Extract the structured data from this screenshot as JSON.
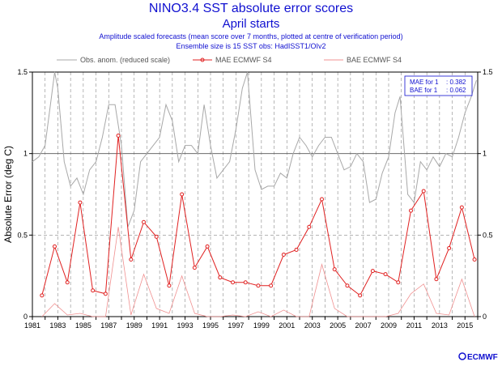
{
  "header": {
    "title": "NINO3.4 SST absolute error scores",
    "subtitle": "April starts",
    "line3": "Amplitude scaled forecasts (mean score over 7 months, plotted at centre of verification period)",
    "line4": "Ensemble size is 15          SST obs: HadISST1/OIv2"
  },
  "legend": {
    "obs": "Obs. anom. (reduced scale)",
    "mae": "MAE ECMWF S4",
    "bae": "BAE ECMWF S4"
  },
  "stats": {
    "mae_label": "MAE for 1",
    "mae_value": ": 0.382",
    "bae_label": "BAE for 1",
    "bae_value": ": 0.062"
  },
  "logo": "ECMWF",
  "colors": {
    "mae": "#e02020",
    "bae": "#f09090",
    "obs": "#a8a8a8",
    "text": "#1010d0"
  },
  "chart_data": {
    "type": "line",
    "ylabel": "Absolute Error (deg C)",
    "xlim": [
      1981,
      2016
    ],
    "ylim": [
      0,
      1.5
    ],
    "y_ticks": [
      0,
      0.5,
      1,
      1.5
    ],
    "y_tick_labels": [
      "0",
      "0.5",
      "1",
      "1.5"
    ],
    "x_tick_labels": [
      "1981",
      "1983",
      "1985",
      "1987",
      "1989",
      "1991",
      "1993",
      "1995",
      "1997",
      "1999",
      "2001",
      "2003",
      "2005",
      "2007",
      "2009",
      "2011",
      "2013",
      "2015"
    ],
    "grid": true,
    "legend_position": "top",
    "series": [
      {
        "name": "MAE ECMWF S4",
        "x": [
          1981.75,
          1982.75,
          1983.75,
          1984.75,
          1985.75,
          1986.75,
          1987.75,
          1988.75,
          1989.75,
          1990.75,
          1991.75,
          1992.75,
          1993.75,
          1994.75,
          1995.75,
          1996.75,
          1997.75,
          1998.75,
          1999.75,
          2000.75,
          2001.75,
          2002.75,
          2003.75,
          2004.75,
          2005.75,
          2006.75,
          2007.75,
          2008.75,
          2009.75,
          2010.75,
          2011.75,
          2012.75,
          2013.75,
          2014.75,
          2015.75
        ],
        "values": [
          0.13,
          0.43,
          0.21,
          0.7,
          0.16,
          0.14,
          1.11,
          0.35,
          0.58,
          0.49,
          0.19,
          0.75,
          0.3,
          0.43,
          0.24,
          0.21,
          0.21,
          0.19,
          0.19,
          0.38,
          0.41,
          0.55,
          0.72,
          0.29,
          0.19,
          0.13,
          0.28,
          0.26,
          0.21,
          0.65,
          0.77,
          0.23,
          0.42,
          0.67,
          0.35
        ]
      },
      {
        "name": "BAE ECMWF S4",
        "x": [
          1981.75,
          1982.75,
          1983.75,
          1984.75,
          1985.75,
          1986.75,
          1987.75,
          1988.75,
          1989.75,
          1990.75,
          1991.75,
          1992.75,
          1993.75,
          1994.75,
          1995.75,
          1996.75,
          1997.75,
          1998.75,
          1999.75,
          2000.75,
          2001.75,
          2002.75,
          2003.75,
          2004.75,
          2005.75,
          2006.75,
          2007.75,
          2008.75,
          2009.75,
          2010.75,
          2011.75,
          2012.75,
          2013.75,
          2014.75,
          2015.75
        ],
        "values": [
          0.0,
          0.08,
          0.01,
          0.02,
          0.0,
          0.0,
          0.55,
          0.01,
          0.26,
          0.05,
          0.02,
          0.25,
          0.02,
          0.0,
          0.0,
          0.01,
          0.0,
          0.03,
          0.0,
          0.04,
          0.0,
          0.0,
          0.32,
          0.05,
          0.0,
          0.0,
          0.0,
          0.0,
          0.02,
          0.14,
          0.2,
          0.02,
          0.01,
          0.23,
          0.0
        ]
      },
      {
        "name": "Obs. anom. (reduced scale)",
        "x": [
          1981.0,
          1981.5,
          1982.0,
          1982.5,
          1982.75,
          1983.0,
          1983.5,
          1984.0,
          1984.5,
          1985.0,
          1985.5,
          1986.0,
          1986.5,
          1987.0,
          1987.5,
          1988.0,
          1988.5,
          1989.0,
          1989.5,
          1990.0,
          1990.5,
          1991.0,
          1991.5,
          1992.0,
          1992.5,
          1993.0,
          1993.5,
          1994.0,
          1994.5,
          1995.0,
          1995.5,
          1996.0,
          1996.5,
          1997.0,
          1997.5,
          1997.9,
          1998.5,
          1999.0,
          1999.5,
          2000.0,
          2000.5,
          2001.0,
          2001.5,
          2002.0,
          2002.5,
          2003.0,
          2003.5,
          2004.0,
          2004.5,
          2005.0,
          2005.5,
          2006.0,
          2006.5,
          2007.0,
          2007.5,
          2008.0,
          2008.5,
          2009.0,
          2009.5,
          2009.9,
          2010.5,
          2011.0,
          2011.5,
          2012.0,
          2012.5,
          2013.0,
          2013.5,
          2014.0,
          2014.5,
          2015.0,
          2015.5,
          2015.9
        ],
        "values": [
          0.95,
          0.98,
          1.05,
          1.35,
          1.5,
          1.4,
          0.95,
          0.8,
          0.85,
          0.75,
          0.9,
          0.95,
          1.1,
          1.3,
          1.3,
          1.05,
          0.55,
          0.65,
          0.95,
          1.0,
          1.05,
          1.1,
          1.3,
          1.2,
          0.95,
          1.05,
          1.05,
          1.0,
          1.3,
          1.05,
          0.85,
          0.9,
          0.95,
          1.15,
          1.4,
          1.5,
          0.9,
          0.78,
          0.8,
          0.8,
          0.88,
          0.85,
          1.0,
          1.1,
          1.05,
          0.98,
          1.05,
          1.1,
          1.1,
          1.0,
          0.9,
          0.92,
          1.0,
          0.95,
          0.7,
          0.72,
          0.88,
          0.98,
          1.25,
          1.35,
          0.75,
          0.7,
          0.95,
          0.9,
          0.98,
          0.92,
          1.0,
          0.98,
          1.1,
          1.25,
          1.35,
          1.45
        ]
      }
    ]
  }
}
